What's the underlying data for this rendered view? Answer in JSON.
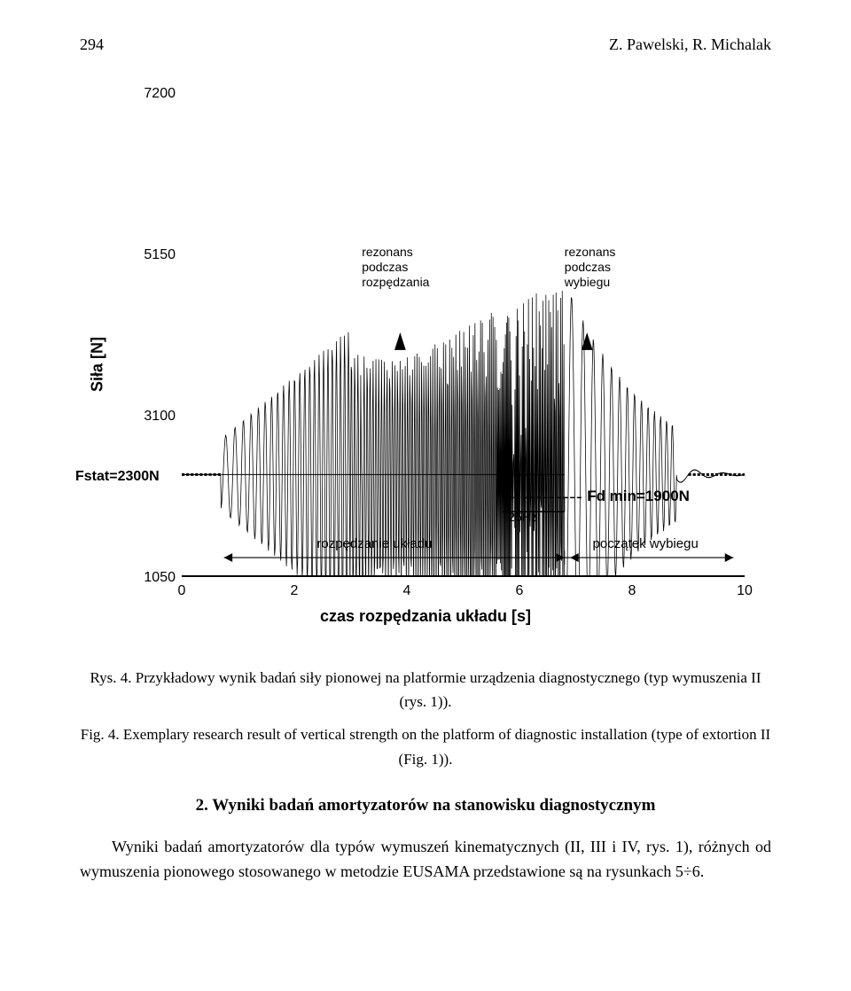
{
  "header": {
    "page_number": "294",
    "authors": "Z. Pawelski, R. Michalak"
  },
  "chart": {
    "y_label": "Siła [N]",
    "x_label": "czas rozpędzania układu [s]",
    "y_ticks": [
      {
        "value": "7200",
        "pos": 0.0
      },
      {
        "value": "5150",
        "pos": 0.333
      },
      {
        "value": "3100",
        "pos": 0.666
      },
      {
        "value": "1050",
        "pos": 1.0
      }
    ],
    "x_ticks": [
      {
        "value": "0",
        "pos": 0.0
      },
      {
        "value": "2",
        "pos": 0.2
      },
      {
        "value": "4",
        "pos": 0.4
      },
      {
        "value": "6",
        "pos": 0.6
      },
      {
        "value": "8",
        "pos": 0.8
      },
      {
        "value": "10",
        "pos": 1.0
      }
    ],
    "fstat_label": "Fstat=2300N",
    "fdmin_label": "Fd min=1900N",
    "anno_rozpedzania": "rezonans\npodczas\nrozpędzania",
    "anno_wybieg": "rezonans\npodczas\nwybiegu",
    "anno_25hz": "25Hz",
    "range_accel": "rozpędzanie układu",
    "range_coast": "początek wybiegu",
    "waveform_color": "#000000",
    "waveform_linewidth": 1.2
  },
  "caption_pl": "Rys. 4. Przykładowy wynik badań siły pionowej na platformie urządzenia diagnostycznego (typ wymuszenia II (rys. 1)).",
  "caption_en": "Fig. 4. Exemplary research result of vertical strength on the platform of diagnostic installation (type of extortion II (Fig. 1)).",
  "section_title": "2. Wyniki badań amortyzatorów na stanowisku diagnostycznym",
  "body": "Wyniki badań amortyzatorów dla typów wymuszeń kinematycznych (II, III i IV, rys. 1), różnych od wymuszenia pionowego stosowanego w metodzie EUSAMA przedstawione są na rysunkach 5÷6."
}
